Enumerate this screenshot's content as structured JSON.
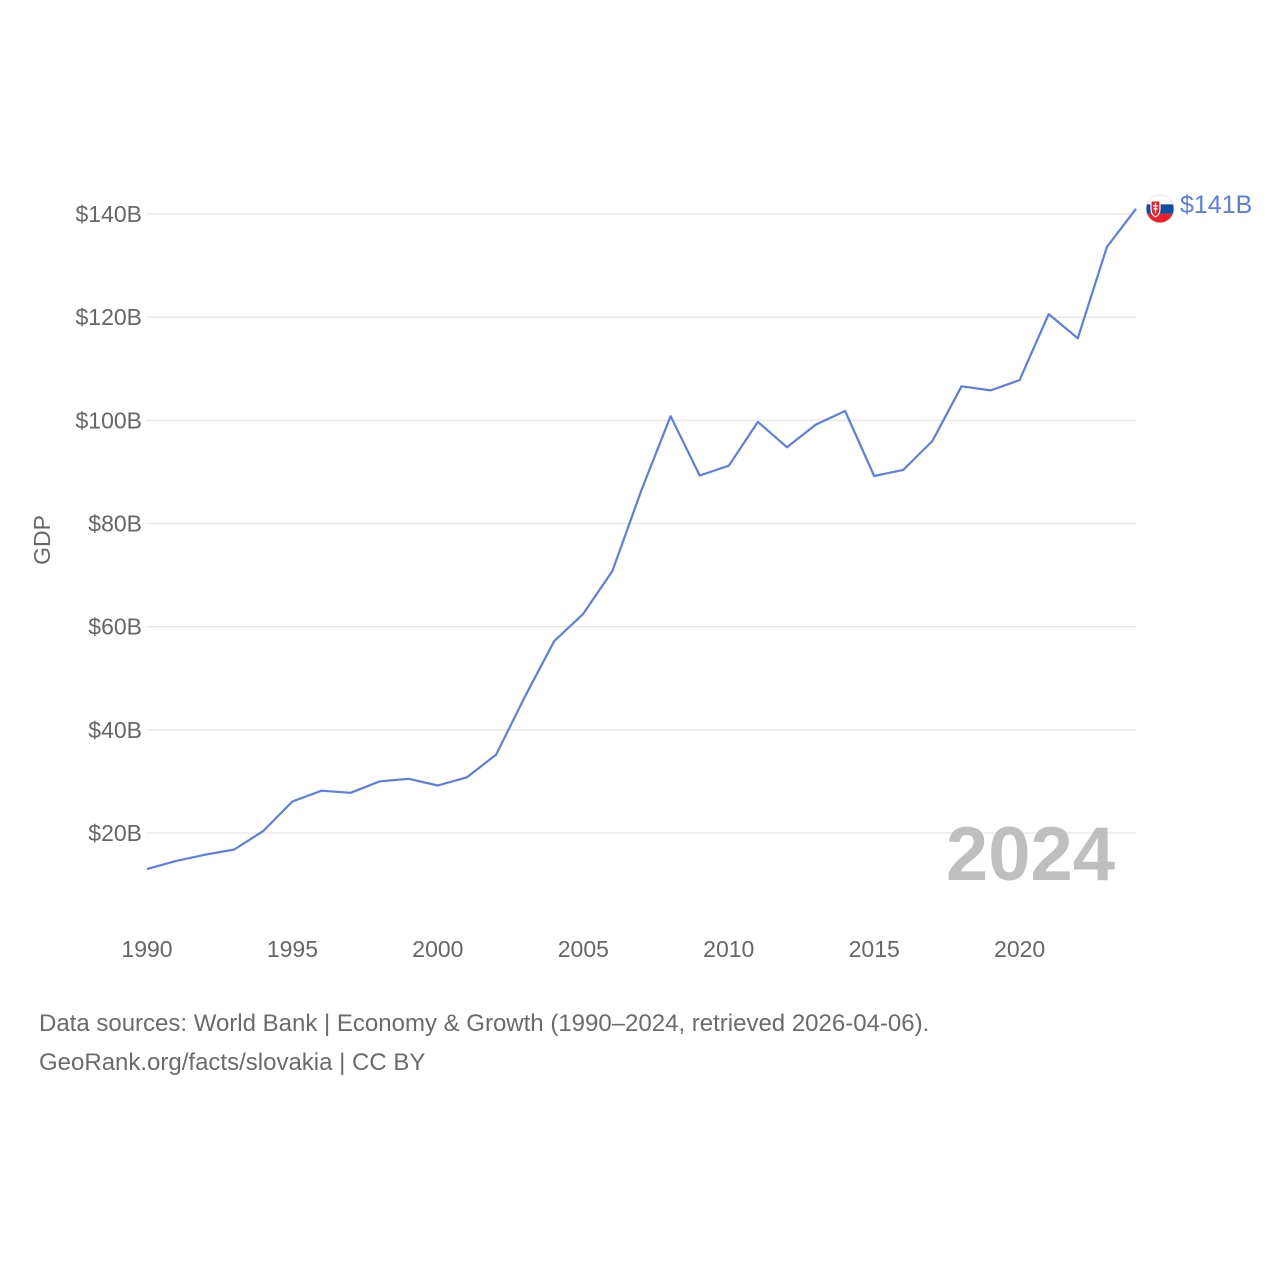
{
  "chart_data": {
    "type": "line",
    "title": "",
    "ylabel": "GDP",
    "xlabel": "",
    "ylim": [
      0,
      150
    ],
    "xlim": [
      1990,
      2024
    ],
    "y_ticks": [
      {
        "value": 20,
        "label": "$20B"
      },
      {
        "value": 40,
        "label": "$40B"
      },
      {
        "value": 60,
        "label": "$60B"
      },
      {
        "value": 80,
        "label": "$80B"
      },
      {
        "value": 100,
        "label": "$100B"
      },
      {
        "value": 120,
        "label": "$120B"
      },
      {
        "value": 140,
        "label": "$140B"
      }
    ],
    "x_ticks": [
      {
        "value": 1990,
        "label": "1990"
      },
      {
        "value": 1995,
        "label": "1995"
      },
      {
        "value": 2000,
        "label": "2000"
      },
      {
        "value": 2005,
        "label": "2005"
      },
      {
        "value": 2010,
        "label": "2010"
      },
      {
        "value": 2015,
        "label": "2015"
      },
      {
        "value": 2020,
        "label": "2020"
      }
    ],
    "year_watermark": "2024",
    "series": [
      {
        "name": "Slovakia",
        "color": "#5b7ee5",
        "end_label": "$141B",
        "x": [
          1990,
          1991,
          1992,
          1993,
          1994,
          1995,
          1996,
          1997,
          1998,
          1999,
          2000,
          2001,
          2002,
          2003,
          2004,
          2005,
          2006,
          2007,
          2008,
          2009,
          2010,
          2011,
          2012,
          2013,
          2014,
          2015,
          2016,
          2017,
          2018,
          2019,
          2020,
          2021,
          2022,
          2023,
          2024
        ],
        "values": [
          13.0,
          14.6,
          15.8,
          16.8,
          20.4,
          26.1,
          28.2,
          27.8,
          30.0,
          30.5,
          29.2,
          30.8,
          35.2,
          46.5,
          57.2,
          62.5,
          70.8,
          86.5,
          100.8,
          89.3,
          91.2,
          99.7,
          94.8,
          99.2,
          101.8,
          89.2,
          90.4,
          96.0,
          106.6,
          105.8,
          107.8,
          120.6,
          115.9,
          133.6,
          141.0
        ]
      }
    ],
    "footer": {
      "line1": "Data sources: World Bank | Economy & Growth (1990–2024, retrieved 2026-04-06).",
      "line2": "GeoRank.org/facts/slovakia | CC BY"
    },
    "colors": {
      "line": "#5b7ee5",
      "flag_white": "#ffffff",
      "flag_blue": "#0b4ea2",
      "flag_red": "#ee1c25"
    }
  }
}
